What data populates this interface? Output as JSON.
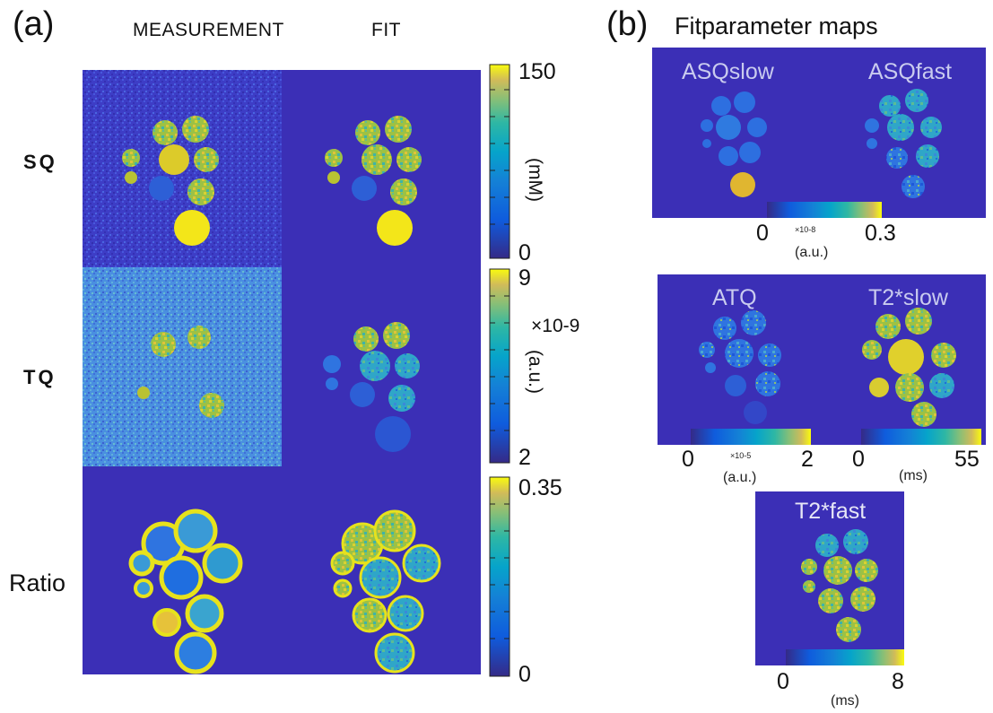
{
  "panel_a": {
    "label": "(a)",
    "columns": [
      "MEASUREMENT",
      "FIT"
    ],
    "rows": [
      "SQ",
      "TQ",
      "Ratio"
    ],
    "colorbars": [
      {
        "max": "150",
        "min": "0",
        "unit": "(mM)",
        "exp": ""
      },
      {
        "max": "9",
        "min": "2",
        "unit": "(a.u.)",
        "exp": "×10-9"
      },
      {
        "max": "0.35",
        "min": "0",
        "unit": "",
        "exp": ""
      }
    ]
  },
  "panel_b": {
    "label": "(b)",
    "title": "Fitparameter maps",
    "maps": [
      {
        "title": "ASQslow"
      },
      {
        "title": "ASQfast"
      },
      {
        "title": "ATQ"
      },
      {
        "title": "T2*slow"
      },
      {
        "title": "T2*fast"
      }
    ],
    "colorbars": [
      {
        "min": "0",
        "max": "0.3",
        "exp": "×10-8",
        "unit": "(a.u.)"
      },
      {
        "min": "0",
        "max": "2",
        "exp": "×10-5",
        "unit": "(a.u.)"
      },
      {
        "min": "0",
        "max": "55",
        "exp": "",
        "unit": "(ms)"
      },
      {
        "min": "0",
        "max": "8",
        "exp": "",
        "unit": "(ms)"
      }
    ]
  },
  "colors": {
    "background": "#3b2fb6",
    "noise": "#3f47cf",
    "noise_tq": "#4896e0",
    "phantom_mid": "#4f9ed8",
    "phantom_high": "#b9c232",
    "phantom_max": "#f3e619"
  }
}
